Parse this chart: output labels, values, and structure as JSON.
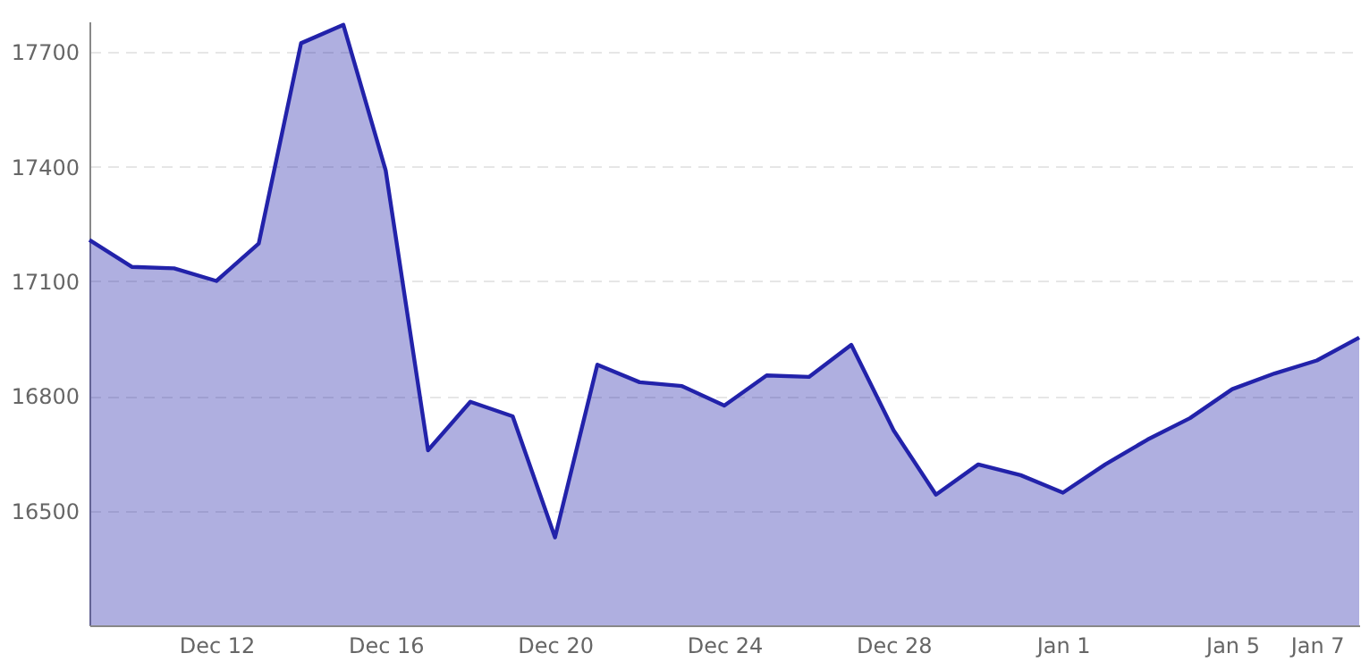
{
  "chart_data": {
    "type": "area",
    "categories": [
      null,
      null,
      null,
      "Dec 12",
      null,
      null,
      null,
      "Dec 16",
      null,
      null,
      null,
      "Dec 20",
      null,
      null,
      null,
      "Dec 24",
      null,
      null,
      null,
      "Dec 28",
      null,
      null,
      null,
      "Jan 1",
      null,
      null,
      null,
      "Jan 5",
      null,
      "Jan 7",
      null
    ],
    "series": [
      {
        "color": "#2222aa",
        "values": [
          17208,
          17138,
          17134,
          17101,
          17199,
          17723,
          17771,
          17390,
          16658,
          16785,
          16747,
          16430,
          16882,
          16836,
          16826,
          16775,
          16854,
          16850,
          16934,
          16710,
          16542,
          16621,
          16593,
          16547,
          16621,
          16686,
          16742,
          16818,
          16859,
          16893,
          16953
        ]
      }
    ],
    "ylim": [
      16200,
      17780
    ],
    "yticks": [
      16500,
      16800,
      17100,
      17400,
      17700
    ],
    "grid": "y"
  }
}
